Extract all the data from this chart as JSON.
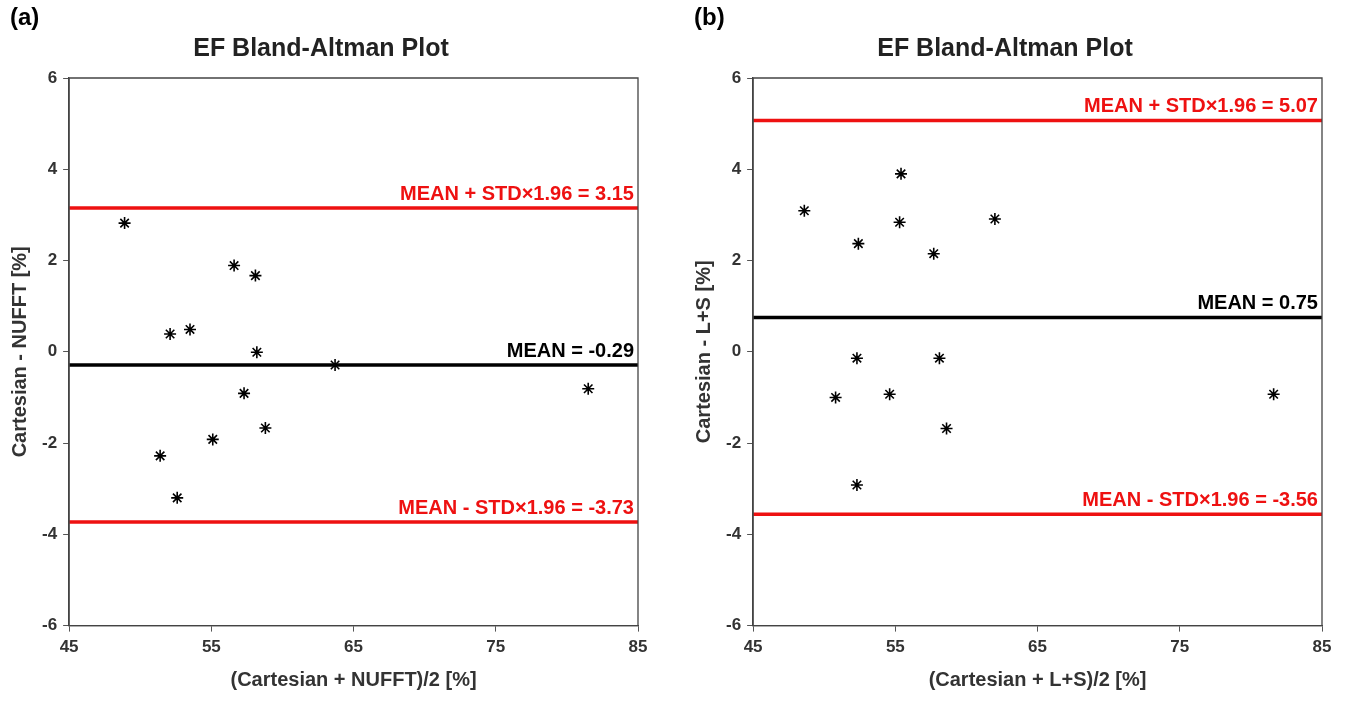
{
  "chart_data": [
    {
      "type": "scatter",
      "title": "EF Bland-Altman Plot",
      "xlabel": "(Cartesian + NUFFT)/2 [%]",
      "ylabel": "Cartesian - NUFFT [%]",
      "annotations": [
        "(a)"
      ],
      "x": [
        48.9,
        56.6,
        58.1,
        52.1,
        53.5,
        58.2,
        63.7,
        57.3,
        58.8,
        55.1,
        51.4,
        52.6,
        81.5
      ],
      "values": [
        2.82,
        1.89,
        1.67,
        0.39,
        0.49,
        -0.01,
        -0.29,
        -0.91,
        -1.67,
        -1.92,
        -2.28,
        -3.2,
        -0.81
      ],
      "color": "#000000",
      "marker": "cross",
      "xlim": [
        45,
        85
      ],
      "xticks": [
        45,
        55,
        65,
        75,
        85
      ],
      "ylim": [
        -6,
        6
      ],
      "yticks": [
        -6,
        -4,
        -2,
        0,
        2,
        4,
        6
      ],
      "grid": false,
      "legend": false,
      "ref_lines": [
        {
          "axis": "y",
          "value": 3.15,
          "label": "MEAN + STD×1.96 = 3.15",
          "color": "#ee1111"
        },
        {
          "axis": "y",
          "value": -0.29,
          "label": "MEAN = -0.29",
          "color": "#000000"
        },
        {
          "axis": "y",
          "value": -3.73,
          "label": "MEAN - STD×1.96 = -3.73",
          "color": "#ee1111"
        }
      ]
    },
    {
      "type": "scatter",
      "title": "EF Bland-Altman Plot",
      "xlabel": "(Cartesian + L+S)/2 [%]",
      "ylabel": "Cartesian - L+S [%]",
      "annotations": [
        "(b)"
      ],
      "x": [
        48.6,
        50.8,
        52.4,
        52.3,
        52.3,
        54.6,
        55.4,
        55.3,
        57.7,
        58.1,
        58.6,
        62.0,
        81.6
      ],
      "values": [
        3.09,
        -1.0,
        2.37,
        -0.14,
        -2.92,
        -0.93,
        3.9,
        2.84,
        2.15,
        -0.14,
        -1.68,
        2.91,
        -0.93
      ],
      "color": "#000000",
      "marker": "cross",
      "xlim": [
        45,
        85
      ],
      "xticks": [
        45,
        55,
        65,
        75,
        85
      ],
      "ylim": [
        -6,
        6
      ],
      "yticks": [
        -6,
        -4,
        -2,
        0,
        2,
        4,
        6
      ],
      "grid": false,
      "legend": false,
      "ref_lines": [
        {
          "axis": "y",
          "value": 5.07,
          "label": "MEAN + STD×1.96 = 5.07",
          "color": "#ee1111"
        },
        {
          "axis": "y",
          "value": 0.75,
          "label": "MEAN = 0.75",
          "color": "#000000"
        },
        {
          "axis": "y",
          "value": -3.56,
          "label": "MEAN - STD×1.96 = -3.56",
          "color": "#ee1111"
        }
      ]
    }
  ]
}
